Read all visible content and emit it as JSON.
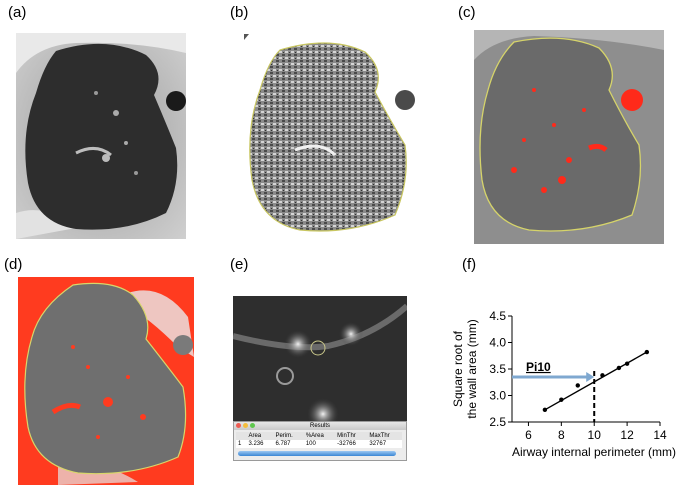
{
  "panels": {
    "a": {
      "label": "(a)"
    },
    "b": {
      "label": "(b)"
    },
    "c": {
      "label": "(c)"
    },
    "d": {
      "label": "(d)"
    },
    "e": {
      "label": "(e)"
    },
    "f": {
      "label": "(f)"
    }
  },
  "results_window": {
    "title": "Results",
    "headers": [
      "",
      "Area",
      "Perim.",
      "%Area",
      "MinThr",
      "MaxThr"
    ],
    "row": [
      "1",
      "3.236",
      "6.787",
      "100",
      "-32766",
      "32767"
    ]
  },
  "colors": {
    "lung_dark": "#2b2b2b",
    "overlay_red": "#ff3b1f",
    "contour": "#d8d66a",
    "arrow_blue": "#7fa8d0"
  },
  "chart_data": {
    "type": "scatter",
    "xlabel": "Airway internal perimeter (mm)",
    "ylabel": "Square root of the wall area (mm)",
    "xlim": [
      5,
      14
    ],
    "ylim": [
      2.5,
      4.5
    ],
    "x_ticks": [
      "6",
      "8",
      "10",
      "12",
      "14"
    ],
    "y_ticks": [
      "2.5",
      "3.0",
      "3.5",
      "4.0",
      "4.5"
    ],
    "points": [
      {
        "x": 7.0,
        "y": 2.73
      },
      {
        "x": 8.0,
        "y": 2.92
      },
      {
        "x": 9.0,
        "y": 3.19
      },
      {
        "x": 10.5,
        "y": 3.38
      },
      {
        "x": 11.5,
        "y": 3.52
      },
      {
        "x": 12.0,
        "y": 3.6
      },
      {
        "x": 13.2,
        "y": 3.82
      }
    ],
    "fit_line": [
      {
        "x": 7.0,
        "y": 2.73
      },
      {
        "x": 13.2,
        "y": 3.82
      }
    ],
    "annotation": {
      "text": "Pi10",
      "x": 10,
      "y": 3.35
    }
  }
}
